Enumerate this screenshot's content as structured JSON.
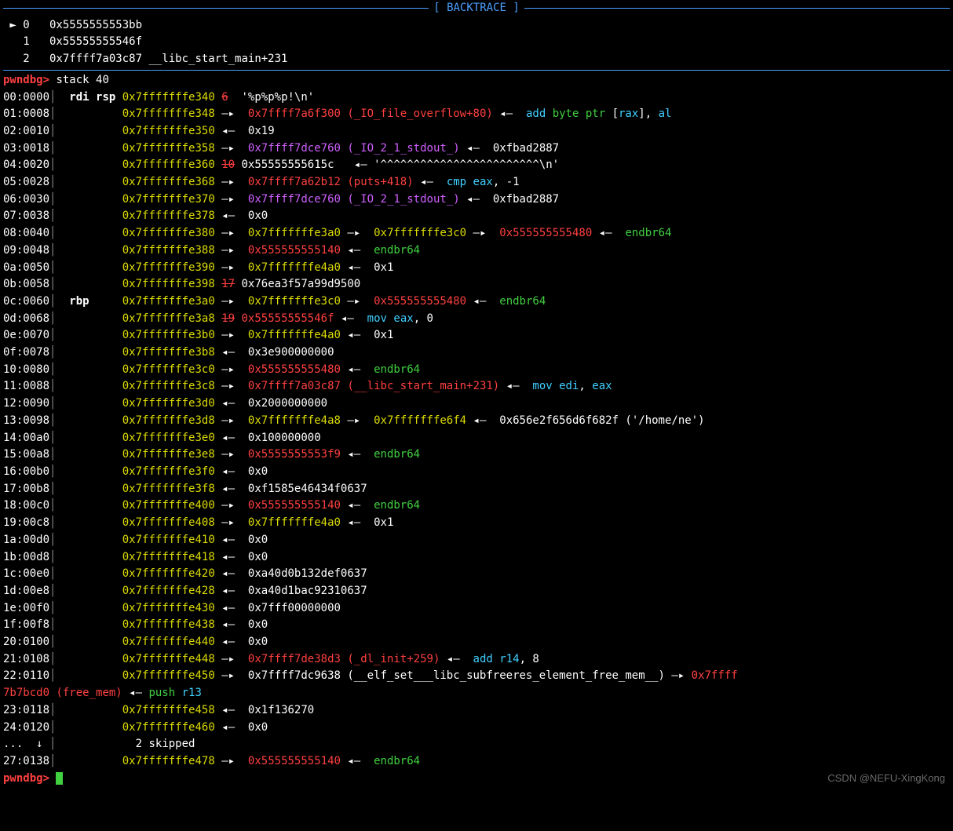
{
  "section": {
    "title": "[ BACKTRACE ]"
  },
  "backtrace": [
    {
      "marker": " ► ",
      "idx": "0",
      "addr": "0x5555555553bb",
      "sym": ""
    },
    {
      "marker": "   ",
      "idx": "1",
      "addr": "0x55555555546f",
      "sym": ""
    },
    {
      "marker": "   ",
      "idx": "2",
      "addr": "0x7ffff7a03c87",
      "sym": "__libc_start_main+231"
    }
  ],
  "prompt": {
    "text": "pwndbg>",
    "command": "stack 40"
  },
  "stack": [
    {
      "off": "00:0000",
      "reg": "rdi rsp",
      "addr": "0x7fffffffe340",
      "arrow": "◂—",
      "annot": "6",
      "annot_strike": true,
      "text": " '%p%p%p!\\n'"
    },
    {
      "off": "01:0008",
      "reg": "",
      "addr": "0x7fffffffe348",
      "arrow": "—▸",
      "ptr": "0x7ffff7a6f300",
      "paren": "(_IO_file_overflow+80)",
      "tail_arrow": "◂—",
      "inst": [
        [
          "cyan",
          "add"
        ],
        [
          "green",
          " byte ptr "
        ],
        [
          "white",
          "["
        ],
        [
          "cyan",
          "rax"
        ],
        [
          "white",
          "], "
        ],
        [
          "cyan",
          "al"
        ]
      ]
    },
    {
      "off": "02:0010",
      "reg": "",
      "addr": "0x7fffffffe350",
      "arrow": "◂—",
      "text": "0x19"
    },
    {
      "off": "03:0018",
      "reg": "",
      "addr": "0x7fffffffe358",
      "arrow": "—▸",
      "ptr_m": "0x7ffff7dce760",
      "paren_m": "(_IO_2_1_stdout_)",
      "tail_arrow": "◂—",
      "text": "0xfbad2887"
    },
    {
      "off": "04:0020",
      "reg": "",
      "addr": "0x7fffffffe360",
      "arrow": "◂—",
      "annot": "10",
      "annot_strike": true,
      "text": "0x55555555615c   ◂— '^^^^^^^^^^^^^^^^^^^^^^^^\\n'"
    },
    {
      "off": "05:0028",
      "reg": "",
      "addr": "0x7fffffffe368",
      "arrow": "—▸",
      "ptr": "0x7ffff7a62b12",
      "paren": "(puts+418)",
      "tail_arrow": "◂—",
      "inst": [
        [
          "cyan",
          "cmp"
        ],
        [
          "cyan",
          " eax"
        ],
        [
          "white",
          ", "
        ],
        [
          "white",
          "-1"
        ]
      ]
    },
    {
      "off": "06:0030",
      "reg": "",
      "addr": "0x7fffffffe370",
      "arrow": "—▸",
      "ptr_m": "0x7ffff7dce760",
      "paren_m": "(_IO_2_1_stdout_)",
      "tail_arrow": "◂—",
      "text": "0xfbad2887"
    },
    {
      "off": "07:0038",
      "reg": "",
      "addr": "0x7fffffffe378",
      "arrow": "◂—",
      "text": "0x0"
    },
    {
      "off": "08:0040",
      "reg": "",
      "addr": "0x7fffffffe380",
      "arrow": "—▸",
      "ptr_y": "0x7fffffffe3a0",
      "chain_arrow": "—▸",
      "ptr_y2": "0x7fffffffe3c0",
      "chain_arrow2": "—▸",
      "ptr": "0x555555555480",
      "tail_arrow": "◂—",
      "inst": [
        [
          "green",
          "endbr64"
        ]
      ]
    },
    {
      "off": "09:0048",
      "reg": "",
      "addr": "0x7fffffffe388",
      "arrow": "—▸",
      "ptr": "0x555555555140",
      "tail_arrow": "◂—",
      "inst": [
        [
          "green",
          "endbr64"
        ]
      ]
    },
    {
      "off": "0a:0050",
      "reg": "",
      "addr": "0x7fffffffe390",
      "arrow": "—▸",
      "ptr_y": "0x7fffffffe4a0",
      "tail_arrow": "◂—",
      "text": "0x1"
    },
    {
      "off": "0b:0058",
      "reg": "",
      "addr": "0x7fffffffe398",
      "arrow": "◂—",
      "annot": "17",
      "annot_strike": true,
      "text": "0x76ea3f57a99d9500"
    },
    {
      "off": "0c:0060",
      "reg": "rbp",
      "addr": "0x7fffffffe3a0",
      "arrow": "—▸",
      "ptr_y": "0x7fffffffe3c0",
      "chain_arrow": "—▸",
      "ptr": "0x555555555480",
      "tail_arrow": "◂—",
      "inst": [
        [
          "green",
          "endbr64"
        ]
      ]
    },
    {
      "off": "0d:0068",
      "reg": "",
      "addr": "0x7fffffffe3a8",
      "arrow": "—▸",
      "annot": "19",
      "annot_strike": true,
      "ptr": "0x55555555546f",
      "tail_arrow": "◂—",
      "inst": [
        [
          "cyan",
          "mov"
        ],
        [
          "cyan",
          " eax"
        ],
        [
          "white",
          ", "
        ],
        [
          "white",
          "0"
        ]
      ]
    },
    {
      "off": "0e:0070",
      "reg": "",
      "addr": "0x7fffffffe3b0",
      "arrow": "—▸",
      "ptr_y": "0x7fffffffe4a0",
      "tail_arrow": "◂—",
      "text": "0x1"
    },
    {
      "off": "0f:0078",
      "reg": "",
      "addr": "0x7fffffffe3b8",
      "arrow": "◂—",
      "text": "0x3e900000000"
    },
    {
      "off": "10:0080",
      "reg": "",
      "addr": "0x7fffffffe3c0",
      "arrow": "—▸",
      "ptr": "0x555555555480",
      "tail_arrow": "◂—",
      "inst": [
        [
          "green",
          "endbr64"
        ]
      ]
    },
    {
      "off": "11:0088",
      "reg": "",
      "addr": "0x7fffffffe3c8",
      "arrow": "—▸",
      "ptr": "0x7ffff7a03c87",
      "paren": "(__libc_start_main+231)",
      "tail_arrow": "◂—",
      "inst": [
        [
          "cyan",
          "mov"
        ],
        [
          "cyan",
          " edi"
        ],
        [
          "white",
          ", "
        ],
        [
          "cyan",
          "eax"
        ]
      ]
    },
    {
      "off": "12:0090",
      "reg": "",
      "addr": "0x7fffffffe3d0",
      "arrow": "◂—",
      "text": "0x2000000000"
    },
    {
      "off": "13:0098",
      "reg": "",
      "addr": "0x7fffffffe3d8",
      "arrow": "—▸",
      "ptr_y": "0x7fffffffe4a8",
      "chain_arrow": "—▸",
      "ptr_y2": "0x7fffffffe6f4",
      "tail_arrow": "◂—",
      "text": "0x656e2f656d6f682f ('/home/ne')"
    },
    {
      "off": "14:00a0",
      "reg": "",
      "addr": "0x7fffffffe3e0",
      "arrow": "◂—",
      "text": "0x100000000"
    },
    {
      "off": "15:00a8",
      "reg": "",
      "addr": "0x7fffffffe3e8",
      "arrow": "—▸",
      "ptr": "0x5555555553f9",
      "tail_arrow": "◂—",
      "inst": [
        [
          "green",
          "endbr64"
        ]
      ]
    },
    {
      "off": "16:00b0",
      "reg": "",
      "addr": "0x7fffffffe3f0",
      "arrow": "◂—",
      "text": "0x0"
    },
    {
      "off": "17:00b8",
      "reg": "",
      "addr": "0x7fffffffe3f8",
      "arrow": "◂—",
      "text": "0xf1585e46434f0637"
    },
    {
      "off": "18:00c0",
      "reg": "",
      "addr": "0x7fffffffe400",
      "arrow": "—▸",
      "ptr": "0x555555555140",
      "tail_arrow": "◂—",
      "inst": [
        [
          "green",
          "endbr64"
        ]
      ]
    },
    {
      "off": "19:00c8",
      "reg": "",
      "addr": "0x7fffffffe408",
      "arrow": "—▸",
      "ptr_y": "0x7fffffffe4a0",
      "tail_arrow": "◂—",
      "text": "0x1"
    },
    {
      "off": "1a:00d0",
      "reg": "",
      "addr": "0x7fffffffe410",
      "arrow": "◂—",
      "text": "0x0"
    },
    {
      "off": "1b:00d8",
      "reg": "",
      "addr": "0x7fffffffe418",
      "arrow": "◂—",
      "text": "0x0"
    },
    {
      "off": "1c:00e0",
      "reg": "",
      "addr": "0x7fffffffe420",
      "arrow": "◂—",
      "text": "0xa40d0b132def0637"
    },
    {
      "off": "1d:00e8",
      "reg": "",
      "addr": "0x7fffffffe428",
      "arrow": "◂—",
      "text": "0xa40d1bac92310637"
    },
    {
      "off": "1e:00f0",
      "reg": "",
      "addr": "0x7fffffffe430",
      "arrow": "◂—",
      "text": "0x7fff00000000"
    },
    {
      "off": "1f:00f8",
      "reg": "",
      "addr": "0x7fffffffe438",
      "arrow": "◂—",
      "text": "0x0"
    },
    {
      "off": "20:0100",
      "reg": "",
      "addr": "0x7fffffffe440",
      "arrow": "◂—",
      "text": "0x0"
    },
    {
      "off": "21:0108",
      "reg": "",
      "addr": "0x7fffffffe448",
      "arrow": "—▸",
      "ptr": "0x7ffff7de38d3",
      "paren": "(_dl_init+259)",
      "tail_arrow": "◂—",
      "inst": [
        [
          "cyan",
          "add"
        ],
        [
          "cyan",
          " r14"
        ],
        [
          "white",
          ", "
        ],
        [
          "white",
          "8"
        ]
      ]
    },
    {
      "off": "22:0110",
      "reg": "",
      "addr": "0x7fffffffe450",
      "arrow": "—▸",
      "text_custom": "22"
    },
    {
      "off": "23:0118",
      "reg": "",
      "addr": "0x7fffffffe458",
      "arrow": "◂—",
      "text": "0x1f136270"
    },
    {
      "off": "24:0120",
      "reg": "",
      "addr": "0x7fffffffe460",
      "arrow": "◂—",
      "text": "0x0"
    },
    {
      "off": "...  ↓",
      "reg": "",
      "addr": "2 skipped",
      "plain": true
    },
    {
      "off": "27:0138",
      "reg": "",
      "addr": "0x7fffffffe478",
      "arrow": "—▸",
      "ptr": "0x555555555140",
      "tail_arrow": "◂—",
      "inst": [
        [
          "green",
          "endbr64"
        ]
      ]
    }
  ],
  "line22": {
    "part1": "0x7ffff7dc9638 (__elf_set___libc_subfreeres_element_free_mem__) ",
    "arrow": "—▸",
    "ptr": " 0x7ffff",
    "cont_addr": "7b7bcd0",
    "cont_paren": " (free_mem)",
    "cont_arrow": " ◂— ",
    "cont_inst_push": "push",
    "cont_inst_reg": " r13"
  },
  "watermark": "CSDN @NEFU-XingKong"
}
